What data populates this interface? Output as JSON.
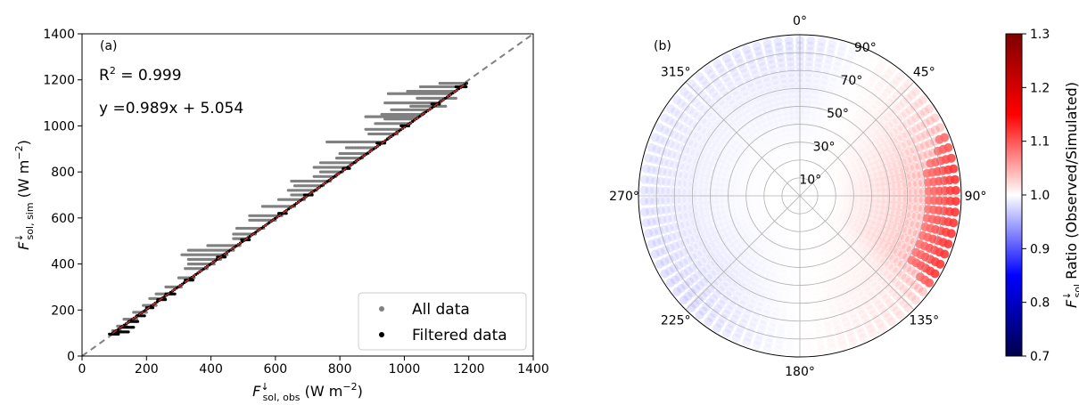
{
  "chart_data": [
    {
      "type": "scatter",
      "panel_label": "(a)",
      "xlabel": {
        "main": "F",
        "sup": "↓",
        "sub": "sol, obs",
        "unit": " (W m",
        "unit_exp": "−2",
        "unit_close": ")"
      },
      "ylabel": {
        "main": "F",
        "sup": "↓",
        "sub": "sol, sim",
        "unit": " (W m",
        "unit_exp": "−2",
        "unit_close": ")"
      },
      "xlim": [
        0,
        1400
      ],
      "ylim": [
        0,
        1400
      ],
      "xticks": [
        0,
        200,
        400,
        600,
        800,
        1000,
        1200,
        1400
      ],
      "yticks": [
        0,
        200,
        400,
        600,
        800,
        1000,
        1200,
        1400
      ],
      "annotations": {
        "r2_prefix": "R",
        "r2_exp": "2",
        "r2_value": " = 0.999",
        "fit_equation": "y =0.989x + 5.054"
      },
      "fit": {
        "slope": 0.989,
        "intercept": 5.054,
        "x_range": [
          95,
          1195
        ]
      },
      "reference_line": {
        "from": [
          0,
          0
        ],
        "to": [
          1400,
          1400
        ],
        "style": "dashed"
      },
      "legend": {
        "placement": "lower-right",
        "entries": [
          "All data",
          "Filtered data"
        ]
      },
      "series": [
        {
          "name": "All data",
          "color": "#808080",
          "note_groups": [
            {
              "y": 1185,
              "x_from": 1110,
              "x_to": 1195
            },
            {
              "y": 1170,
              "x_from": 1050,
              "x_to": 1180
            },
            {
              "y": 1150,
              "x_from": 1010,
              "x_to": 1160
            },
            {
              "y": 1140,
              "x_from": 950,
              "x_to": 1140
            },
            {
              "y": 1120,
              "x_from": 1040,
              "x_to": 1160
            },
            {
              "y": 1100,
              "x_from": 940,
              "x_to": 1110
            },
            {
              "y": 1085,
              "x_from": 1020,
              "x_to": 1130
            },
            {
              "y": 1070,
              "x_from": 960,
              "x_to": 1075
            },
            {
              "y": 1050,
              "x_from": 930,
              "x_to": 1060
            },
            {
              "y": 1040,
              "x_from": 880,
              "x_to": 1045
            },
            {
              "y": 1030,
              "x_from": 940,
              "x_to": 1030
            },
            {
              "y": 1010,
              "x_from": 910,
              "x_to": 1020
            },
            {
              "y": 985,
              "x_from": 880,
              "x_to": 990
            },
            {
              "y": 965,
              "x_from": 890,
              "x_to": 980
            },
            {
              "y": 930,
              "x_from": 760,
              "x_to": 935
            },
            {
              "y": 905,
              "x_from": 820,
              "x_to": 915
            },
            {
              "y": 880,
              "x_from": 800,
              "x_to": 890
            },
            {
              "y": 860,
              "x_from": 790,
              "x_to": 870
            },
            {
              "y": 840,
              "x_from": 740,
              "x_to": 850
            },
            {
              "y": 820,
              "x_from": 720,
              "x_to": 830
            },
            {
              "y": 800,
              "x_from": 740,
              "x_to": 810
            },
            {
              "y": 780,
              "x_from": 720,
              "x_to": 790
            },
            {
              "y": 760,
              "x_from": 650,
              "x_to": 770
            },
            {
              "y": 740,
              "x_from": 660,
              "x_to": 750
            },
            {
              "y": 720,
              "x_from": 640,
              "x_to": 730
            },
            {
              "y": 700,
              "x_from": 650,
              "x_to": 710
            },
            {
              "y": 680,
              "x_from": 610,
              "x_to": 690
            },
            {
              "y": 650,
              "x_from": 560,
              "x_to": 660
            },
            {
              "y": 610,
              "x_from": 520,
              "x_to": 620
            },
            {
              "y": 590,
              "x_from": 520,
              "x_to": 600
            },
            {
              "y": 555,
              "x_from": 480,
              "x_to": 565
            },
            {
              "y": 530,
              "x_from": 470,
              "x_to": 540
            },
            {
              "y": 510,
              "x_from": 470,
              "x_to": 520
            },
            {
              "y": 480,
              "x_from": 390,
              "x_to": 490
            },
            {
              "y": 460,
              "x_from": 330,
              "x_to": 470
            },
            {
              "y": 440,
              "x_from": 310,
              "x_to": 450
            },
            {
              "y": 420,
              "x_from": 330,
              "x_to": 430
            },
            {
              "y": 400,
              "x_from": 330,
              "x_to": 410
            },
            {
              "y": 380,
              "x_from": 320,
              "x_to": 390
            },
            {
              "y": 340,
              "x_from": 300,
              "x_to": 350
            },
            {
              "y": 300,
              "x_from": 260,
              "x_to": 310
            },
            {
              "y": 270,
              "x_from": 230,
              "x_to": 280
            },
            {
              "y": 250,
              "x_from": 210,
              "x_to": 260
            },
            {
              "y": 220,
              "x_from": 190,
              "x_to": 230
            },
            {
              "y": 190,
              "x_from": 160,
              "x_to": 200
            },
            {
              "y": 160,
              "x_from": 130,
              "x_to": 170
            },
            {
              "y": 130,
              "x_from": 110,
              "x_to": 140
            },
            {
              "y": 110,
              "x_from": 95,
              "x_to": 120
            }
          ]
        },
        {
          "name": "Filtered data",
          "color": "#000000",
          "note_groups": [
            {
              "y": 95,
              "x_from": 85,
              "x_to": 115
            },
            {
              "y": 105,
              "x_from": 100,
              "x_to": 145
            },
            {
              "y": 125,
              "x_from": 120,
              "x_to": 160
            },
            {
              "y": 150,
              "x_from": 145,
              "x_to": 175
            },
            {
              "y": 175,
              "x_from": 170,
              "x_to": 195
            },
            {
              "y": 210,
              "x_from": 200,
              "x_to": 220
            },
            {
              "y": 245,
              "x_from": 235,
              "x_to": 260
            },
            {
              "y": 270,
              "x_from": 260,
              "x_to": 290
            },
            {
              "y": 330,
              "x_from": 320,
              "x_to": 345
            },
            {
              "y": 430,
              "x_from": 420,
              "x_to": 445
            },
            {
              "y": 505,
              "x_from": 495,
              "x_to": 520
            },
            {
              "y": 620,
              "x_from": 610,
              "x_to": 635
            },
            {
              "y": 700,
              "x_from": 690,
              "x_to": 715
            },
            {
              "y": 815,
              "x_from": 810,
              "x_to": 830
            },
            {
              "y": 925,
              "x_from": 915,
              "x_to": 940
            },
            {
              "y": 1000,
              "x_from": 990,
              "x_to": 1015
            },
            {
              "y": 1095,
              "x_from": 1085,
              "x_to": 1110
            },
            {
              "y": 1170,
              "x_from": 1160,
              "x_to": 1195
            }
          ]
        }
      ]
    },
    {
      "type": "polar-scatter",
      "panel_label": "(b)",
      "angle_labels": [
        "0°",
        "45°",
        "90°",
        "135°",
        "180°",
        "225°",
        "270°",
        "315°"
      ],
      "radial_labels": [
        "10°",
        "30°",
        "50°",
        "70°",
        "90°"
      ],
      "radial_range": [
        0,
        90
      ],
      "points": {
        "radius_min": 15,
        "radius_max": 88,
        "ratio_pattern": [
          {
            "azimuth": 0,
            "ratio": 0.96
          },
          {
            "azimuth": 45,
            "ratio": 1.03
          },
          {
            "azimuth": 80,
            "ratio": 1.12
          },
          {
            "azimuth": 120,
            "ratio": 1.12
          },
          {
            "azimuth": 135,
            "ratio": 1.04
          },
          {
            "azimuth": 180,
            "ratio": 1.0
          },
          {
            "azimuth": 225,
            "ratio": 0.95
          },
          {
            "azimuth": 270,
            "ratio": 0.96
          },
          {
            "azimuth": 315,
            "ratio": 0.97
          }
        ]
      },
      "colorbar": {
        "label_main": "F",
        "label_sup": "↓",
        "label_sub": "sol",
        "label_rest": " Ratio (Observed/Simulated)",
        "range": [
          0.7,
          1.3
        ],
        "ticks": [
          "0.7",
          "0.8",
          "0.9",
          "1.0",
          "1.1",
          "1.2",
          "1.3"
        ],
        "colormap": [
          "#00004c",
          "#0000ff",
          "#ffffff",
          "#ff0000",
          "#7f0000"
        ]
      }
    }
  ]
}
